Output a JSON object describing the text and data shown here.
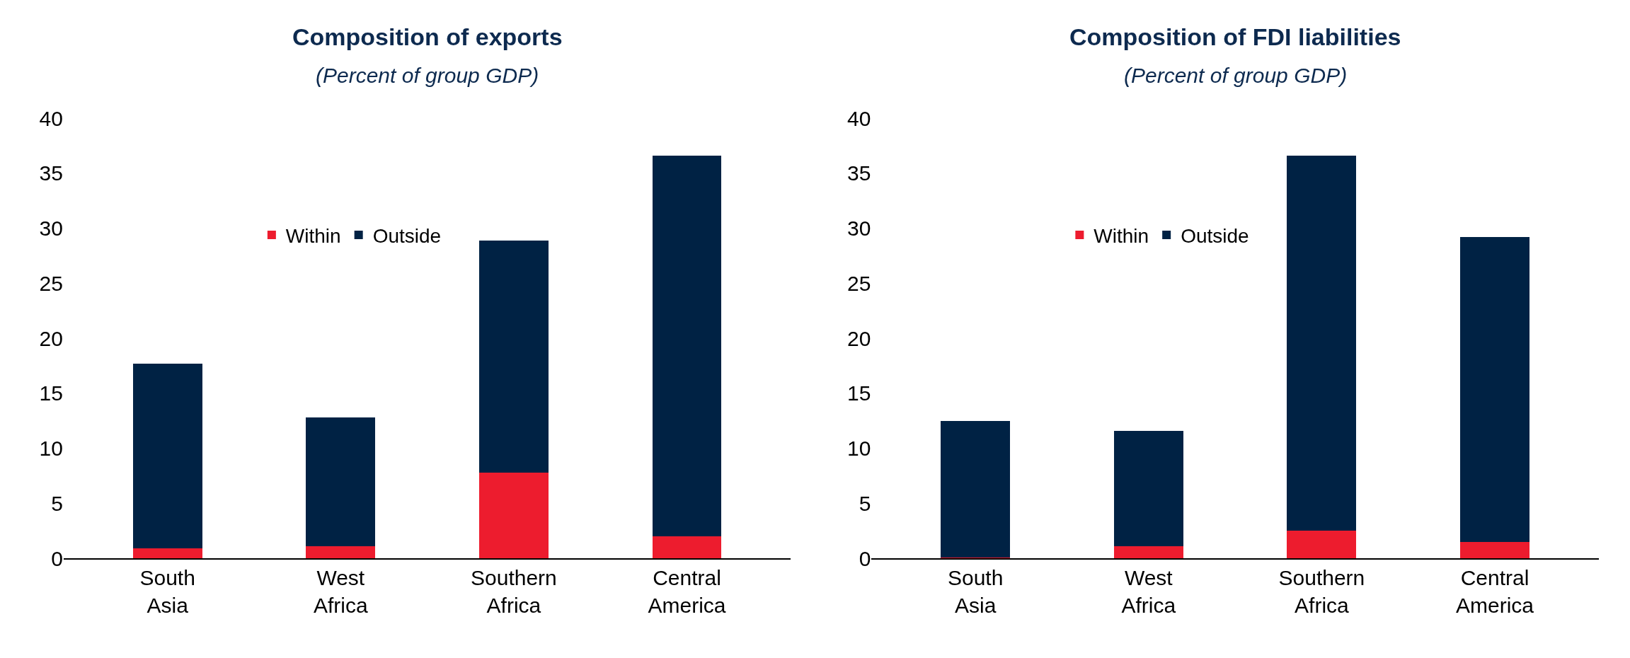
{
  "chart_data": [
    {
      "type": "bar",
      "title": "Composition of exports",
      "subtitle": "(Percent of group GDP)",
      "categories": [
        "South Asia",
        "West Africa",
        "Southern Africa",
        "Central America"
      ],
      "stacked": true,
      "ylim": [
        0,
        40
      ],
      "yticks": [
        0,
        5,
        10,
        15,
        20,
        25,
        30,
        35,
        40
      ],
      "legend": "top left",
      "series": [
        {
          "name": "Within",
          "color": "#ed1c2e",
          "values": [
            0.9,
            1.1,
            7.8,
            2.0
          ]
        },
        {
          "name": "Outside",
          "color": "#002244",
          "values": [
            16.8,
            11.7,
            21.1,
            34.6
          ]
        }
      ]
    },
    {
      "type": "bar",
      "title": "Composition of FDI liabilities",
      "subtitle": "(Percent of group GDP)",
      "categories": [
        "South Asia",
        "West Africa",
        "Southern Africa",
        "Central America"
      ],
      "stacked": true,
      "ylim": [
        0,
        40
      ],
      "yticks": [
        0,
        5,
        10,
        15,
        20,
        25,
        30,
        35,
        40
      ],
      "legend": "top left",
      "series": [
        {
          "name": "Within",
          "color": "#ed1c2e",
          "values": [
            0.1,
            1.1,
            2.5,
            1.5
          ]
        },
        {
          "name": "Outside",
          "color": "#002244",
          "values": [
            12.4,
            10.5,
            34.1,
            27.7
          ]
        }
      ]
    }
  ]
}
